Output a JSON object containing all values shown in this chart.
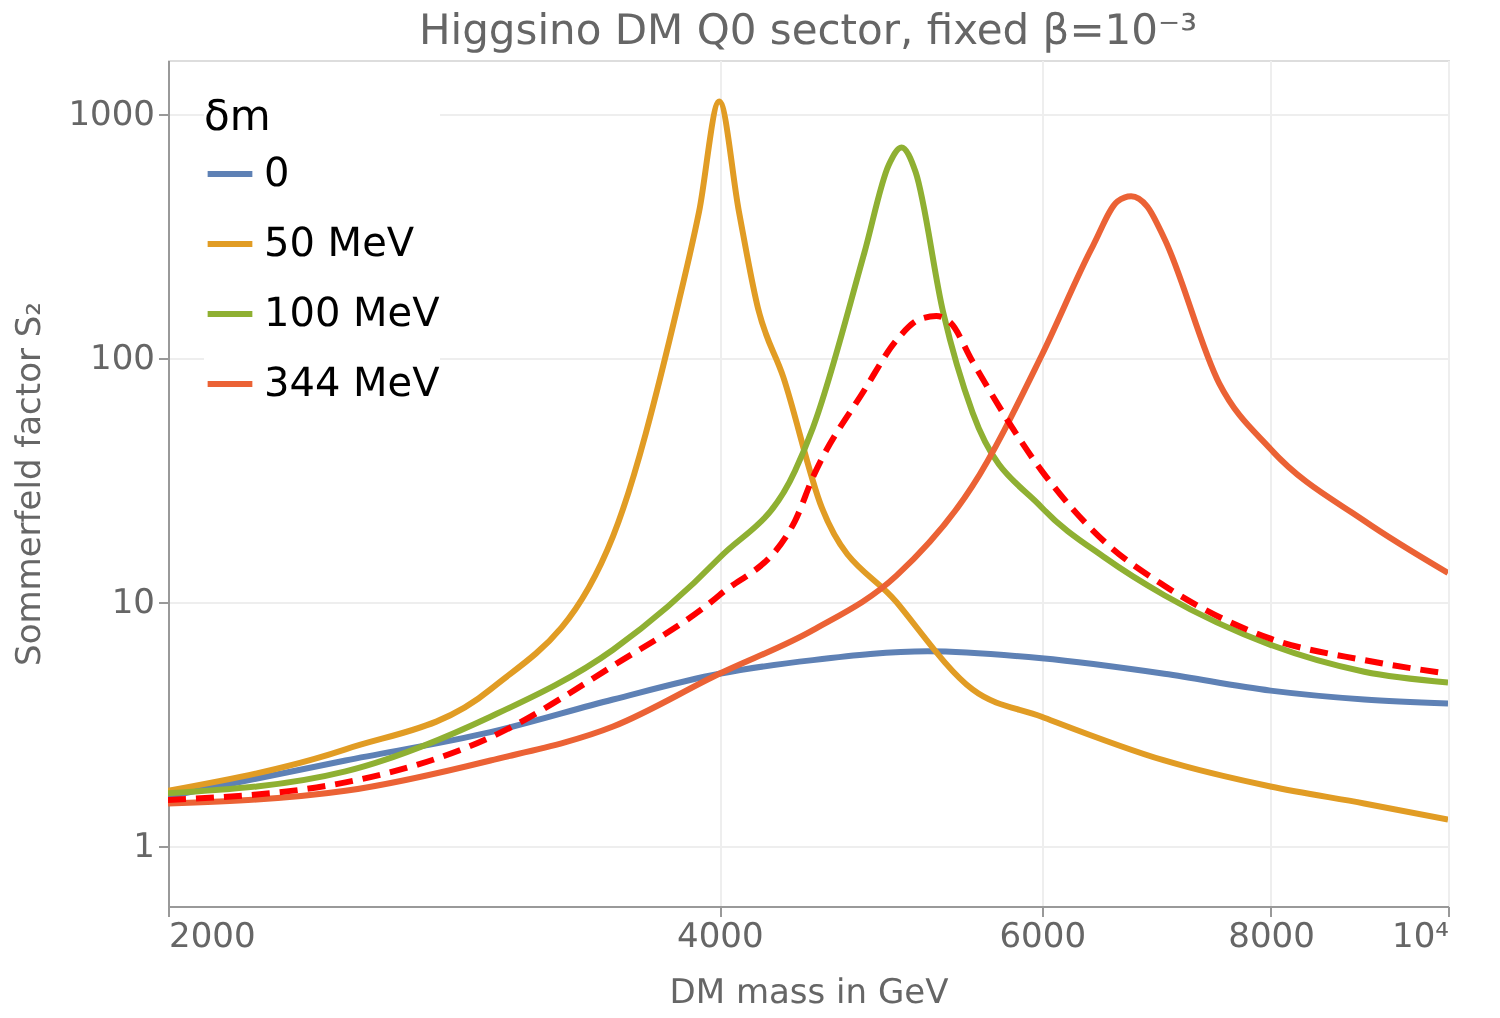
{
  "chart_data": {
    "type": "line",
    "title": "Higgsino DM Q0 sector, fixed β=10⁻³",
    "xlabel": "DM mass in GeV",
    "ylabel": "Sommerfeld factor S₂",
    "legend_title": "δm",
    "legend": "top left",
    "log": "xy",
    "grid": true,
    "marker": "none",
    "xlim": [
      2000,
      10000
    ],
    "xticks": [
      2000,
      4000,
      6000,
      8000,
      {
        "value": 10000,
        "label": "10⁴"
      }
    ],
    "ylim": [
      0.57,
      1670
    ],
    "yticks": [
      1,
      10,
      100,
      1000
    ],
    "series": [
      {
        "name": "0",
        "color": "#5e81b5",
        "x": [
          2000,
          2500,
          3000,
          3500,
          4000,
          4500,
          5200,
          6000,
          7000,
          8000,
          9000,
          10000
        ],
        "values": [
          1.6,
          2.25,
          2.94,
          4.0,
          5.1,
          5.8,
          6.3,
          5.9,
          5.1,
          4.35,
          4.0,
          3.85
        ]
      },
      {
        "name": "50 MeV",
        "color": "#e19c24",
        "x": [
          2000,
          2500,
          3000,
          3500,
          3800,
          3900,
          4000,
          4100,
          4200,
          4335,
          4550,
          5000,
          5500,
          6000,
          7000,
          8000,
          9000,
          10000
        ],
        "values": [
          1.69,
          2.5,
          4.4,
          18.7,
          169,
          400,
          1130,
          400,
          160,
          84,
          24.5,
          10,
          4.4,
          3.4,
          2.25,
          1.76,
          1.5,
          1.29
        ]
      },
      {
        "name": "100 MeV",
        "color": "#8fb032",
        "x": [
          2000,
          2500,
          3000,
          3500,
          4000,
          4400,
          4500,
          4800,
          4950,
          5030,
          5120,
          5300,
          5500,
          6000,
          6500,
          7000,
          8000,
          9000,
          10000
        ],
        "values": [
          1.65,
          2.03,
          3.4,
          6.4,
          15.2,
          34.6,
          52,
          270,
          620,
          731,
          580,
          155,
          60,
          24.5,
          15.2,
          10.7,
          6.7,
          5.2,
          4.7
        ]
      },
      {
        "name": "344 MeV",
        "color": "#eb6235",
        "x": [
          2000,
          2500,
          3000,
          3500,
          4000,
          4500,
          5000,
          5500,
          6000,
          6400,
          6600,
          6714,
          6850,
          7000,
          7500,
          8000,
          9000,
          10000
        ],
        "values": [
          1.5,
          1.69,
          2.25,
          3.1,
          5.1,
          7.7,
          12.9,
          30,
          103,
          290,
          440,
          462,
          420,
          310,
          79,
          42.5,
          21.6,
          13.2
        ]
      },
      {
        "color": "#ff0000",
        "line_style": "dashed",
        "x": [
          2000,
          2500,
          3000,
          3500,
          4000,
          4400,
          4500,
          4800,
          5000,
          5150,
          5255,
          5350,
          5500,
          6000,
          6500,
          7000,
          8000,
          9000,
          10000
        ],
        "values": [
          1.55,
          1.83,
          2.8,
          5.5,
          10.7,
          21.6,
          32.6,
          74,
          119,
          145,
          149,
          140,
          97,
          34.6,
          17.6,
          11.7,
          7.1,
          5.8,
          5.1
        ]
      }
    ]
  }
}
